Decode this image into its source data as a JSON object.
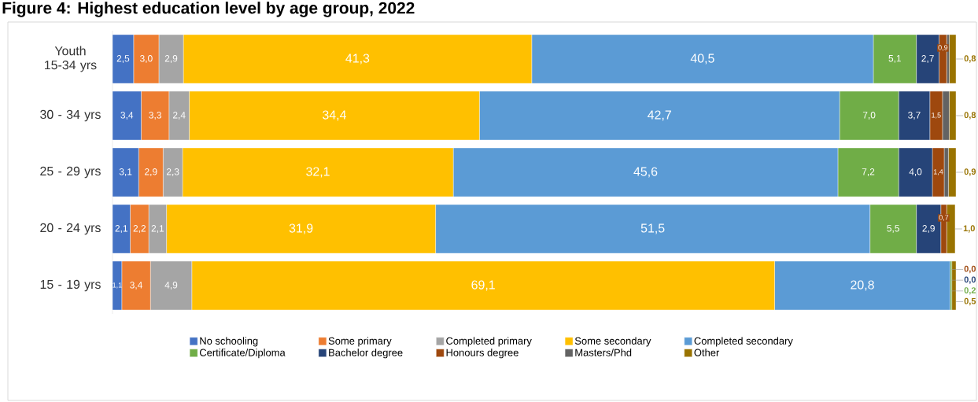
{
  "chart_data": {
    "type": "bar",
    "orientation": "horizontal",
    "stacked": true,
    "title": "Figure 4: Highest education level by age group, 2022",
    "categories": [
      "Youth 15-34 yrs",
      "30 - 34 yrs",
      "25 - 29 yrs",
      "20 - 24 yrs",
      "15 - 19 yrs"
    ],
    "legend": "bottom",
    "series": [
      {
        "name": "No schooling",
        "color": "#4472c4",
        "values": [
          2.5,
          3.4,
          3.1,
          2.1,
          1.1
        ],
        "value_labels": [
          "2,5",
          "3,4",
          "3,1",
          "2,1",
          "1,1"
        ]
      },
      {
        "name": "Some primary",
        "color": "#ed7d31",
        "values": [
          3.0,
          3.3,
          2.9,
          2.2,
          3.4
        ],
        "value_labels": [
          "3,0",
          "3,3",
          "2,9",
          "2,2",
          "3,4"
        ]
      },
      {
        "name": "Completed primary",
        "color": "#a5a5a5",
        "values": [
          2.9,
          2.4,
          2.3,
          2.1,
          4.9
        ],
        "value_labels": [
          "2,9",
          "2,4",
          "2,3",
          "2,1",
          "4,9"
        ]
      },
      {
        "name": "Some secondary",
        "color": "#ffc000",
        "values": [
          41.3,
          34.4,
          32.1,
          31.9,
          69.1
        ],
        "value_labels": [
          "41,3",
          "34,4",
          "32,1",
          "31,9",
          "69,1"
        ]
      },
      {
        "name": "Completed secondary",
        "color": "#5b9bd5",
        "values": [
          40.5,
          42.7,
          45.6,
          51.5,
          20.8
        ],
        "value_labels": [
          "40,5",
          "42,7",
          "45,6",
          "51,5",
          "20,8"
        ]
      },
      {
        "name": "Certificate/Diploma",
        "color": "#70ad47",
        "values": [
          5.1,
          7.0,
          7.2,
          5.5,
          0.2
        ],
        "value_labels": [
          "5,1",
          "7,0",
          "7,2",
          "5,5",
          "0,2"
        ]
      },
      {
        "name": "Bachelor degree",
        "color": "#264478",
        "values": [
          2.7,
          3.7,
          4.0,
          2.9,
          0.0
        ],
        "value_labels": [
          "2,7",
          "3,7",
          "4,0",
          "2,9",
          "0,0"
        ]
      },
      {
        "name": "Honours degree",
        "color": "#9e480e",
        "values": [
          0.9,
          1.5,
          1.4,
          0.7,
          0.0
        ],
        "value_labels": [
          "0,9",
          "1,5",
          "1,4",
          "0,7",
          "0,0"
        ]
      },
      {
        "name": "Masters/Phd",
        "color": "#636363",
        "values": [
          0.3,
          0.8,
          0.5,
          null,
          0.0
        ],
        "value_labels": [
          null,
          null,
          null,
          null,
          null
        ]
      },
      {
        "name": "Other",
        "color": "#997300",
        "values": [
          0.8,
          0.8,
          0.9,
          1.0,
          0.5
        ],
        "value_labels": [
          "0,8",
          "0,8",
          "0,9",
          "1,0",
          "0,5"
        ]
      }
    ]
  }
}
